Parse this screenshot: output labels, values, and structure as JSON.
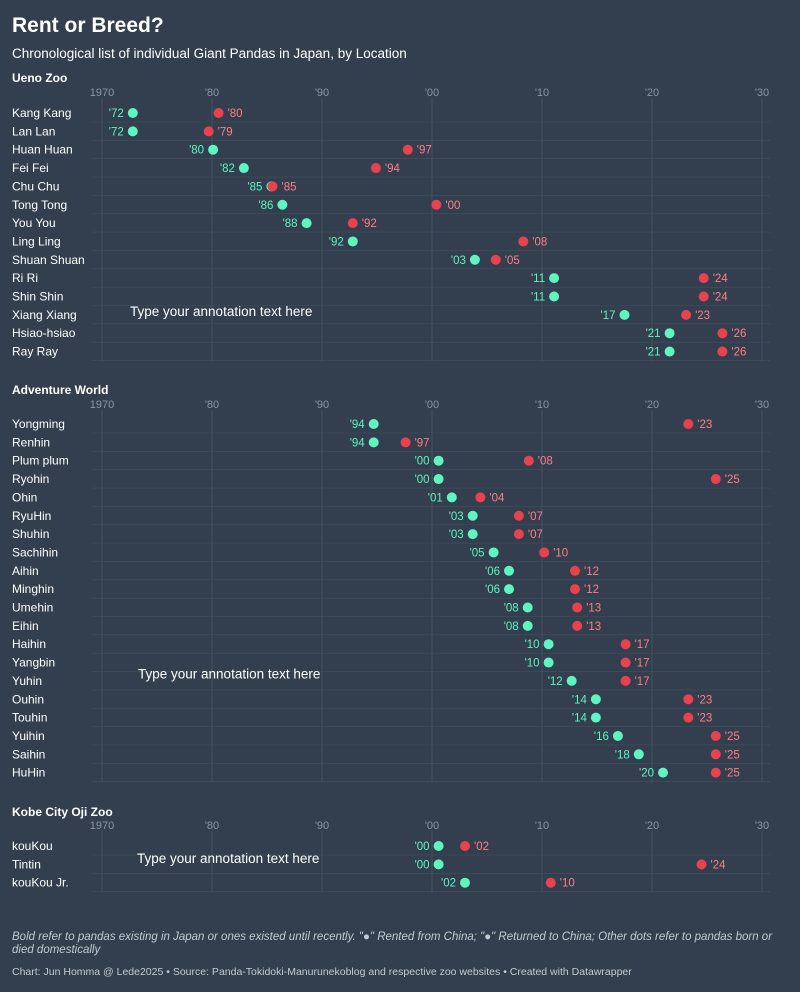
{
  "title": "Rent or Breed?",
  "subtitle": "Chronological list of individual Giant Pandas in Japan, by Location",
  "notes": "Bold refer to pandas existing in Japan or ones existed until recently. \"●\" Rented from China; \"●\" Returned to China; Other dots refer to pandas born or died domestically",
  "footer": "Chart: Jun Homma @ Lede2025 • Source: Panda-Tokidoki-Manurunekoblog and respective zoo websites • Created with Datawrapper",
  "colors": {
    "background": "#333f4e",
    "start": "#5ef5c0",
    "end": "#e8424f",
    "grid": "#46505e",
    "tick": "#8a95a3",
    "startLabel": "#5ef5c0",
    "endLabel": "#ff7e86"
  },
  "chart_data": [
    {
      "type": "range",
      "title": "Ueno Zoo",
      "annotation": "Type your annotation text here",
      "x_ticks": [
        1970,
        1980,
        1990,
        2000,
        2010,
        2020,
        2030
      ],
      "x_tick_labels": [
        "1970",
        "'80",
        "'90",
        "'00",
        "'10",
        "'20",
        "'30"
      ],
      "xlim": [
        1970,
        2030
      ],
      "rows": [
        {
          "name": "Kang Kang",
          "start": 1972.8,
          "end": 1980.6,
          "start_label": "'72",
          "end_label": "'80"
        },
        {
          "name": "Lan Lan",
          "start": 1972.8,
          "end": 1979.7,
          "start_label": "'72",
          "end_label": "'79"
        },
        {
          "name": "Huan Huan",
          "start": 1980.1,
          "end": 1997.8,
          "start_label": "'80",
          "end_label": "'97"
        },
        {
          "name": "Fei Fei",
          "start": 1982.9,
          "end": 1994.9,
          "start_label": "'82",
          "end_label": "'94"
        },
        {
          "name": "Chu Chu",
          "start": 1985.4,
          "end": 1985.5,
          "start_label": "'85",
          "end_label": "'85"
        },
        {
          "name": "Tong Tong",
          "start": 1986.4,
          "end": 2000.4,
          "start_label": "'86",
          "end_label": "'00"
        },
        {
          "name": "You You",
          "start": 1988.6,
          "end": 1992.8,
          "start_label": "'88",
          "end_label": "'92"
        },
        {
          "name": "Ling Ling",
          "start": 1992.8,
          "end": 2008.3,
          "start_label": "'92",
          "end_label": "'08"
        },
        {
          "name": "Shuan Shuan",
          "start": 2003.9,
          "end": 2005.8,
          "start_label": "'03",
          "end_label": "'05"
        },
        {
          "name": "Ri Ri",
          "start": 2011.1,
          "end": 2024.7,
          "start_label": "'11",
          "end_label": "'24"
        },
        {
          "name": "Shin Shin",
          "start": 2011.1,
          "end": 2024.7,
          "start_label": "'11",
          "end_label": "'24"
        },
        {
          "name": "Xiang Xiang",
          "start": 2017.5,
          "end": 2023.1,
          "start_label": "'17",
          "end_label": "'23"
        },
        {
          "name": "Hsiao-hsiao",
          "start": 2021.6,
          "end": 2026.4,
          "start_label": "'21",
          "end_label": "'26"
        },
        {
          "name": "Ray Ray",
          "start": 2021.6,
          "end": 2026.4,
          "start_label": "'21",
          "end_label": "'26"
        }
      ]
    },
    {
      "type": "range",
      "title": "Adventure World",
      "annotation": "Type your annotation text here",
      "x_ticks": [
        1970,
        1980,
        1990,
        2000,
        2010,
        2020,
        2030
      ],
      "x_tick_labels": [
        "1970",
        "'80",
        "'90",
        "'00",
        "'10",
        "'20",
        "'30"
      ],
      "xlim": [
        1970,
        2030
      ],
      "rows": [
        {
          "name": "Yongming",
          "start": 1994.7,
          "end": 2023.3,
          "start_label": "'94",
          "end_label": "'23"
        },
        {
          "name": "Renhin",
          "start": 1994.7,
          "end": 1997.6,
          "start_label": "'94",
          "end_label": "'97"
        },
        {
          "name": "Plum plum",
          "start": 2000.6,
          "end": 2008.8,
          "start_label": "'00",
          "end_label": "'08"
        },
        {
          "name": "Ryohin",
          "start": 2000.6,
          "end": 2025.8,
          "start_label": "'00",
          "end_label": "'25"
        },
        {
          "name": "Ohin",
          "start": 2001.8,
          "end": 2004.4,
          "start_label": "'01",
          "end_label": "'04"
        },
        {
          "name": "RyuHin",
          "start": 2003.7,
          "end": 2007.9,
          "start_label": "'03",
          "end_label": "'07"
        },
        {
          "name": "Shuhin",
          "start": 2003.7,
          "end": 2007.9,
          "start_label": "'03",
          "end_label": "'07"
        },
        {
          "name": "Sachihin",
          "start": 2005.6,
          "end": 2010.2,
          "start_label": "'05",
          "end_label": "'10"
        },
        {
          "name": "Aihin",
          "start": 2007.0,
          "end": 2013.0,
          "start_label": "'06",
          "end_label": "'12"
        },
        {
          "name": "Minghin",
          "start": 2007.0,
          "end": 2013.0,
          "start_label": "'06",
          "end_label": "'12"
        },
        {
          "name": "Umehin",
          "start": 2008.7,
          "end": 2013.2,
          "start_label": "'08",
          "end_label": "'13"
        },
        {
          "name": "Eihin",
          "start": 2008.7,
          "end": 2013.2,
          "start_label": "'08",
          "end_label": "'13"
        },
        {
          "name": "Haihin",
          "start": 2010.6,
          "end": 2017.6,
          "start_label": "'10",
          "end_label": "'17"
        },
        {
          "name": "Yangbin",
          "start": 2010.6,
          "end": 2017.6,
          "start_label": "'10",
          "end_label": "'17"
        },
        {
          "name": "Yuhin",
          "start": 2012.7,
          "end": 2017.6,
          "start_label": "'12",
          "end_label": "'17"
        },
        {
          "name": "Ouhin",
          "start": 2014.9,
          "end": 2023.3,
          "start_label": "'14",
          "end_label": "'23"
        },
        {
          "name": "Touhin",
          "start": 2014.9,
          "end": 2023.3,
          "start_label": "'14",
          "end_label": "'23"
        },
        {
          "name": "Yuihin",
          "start": 2016.9,
          "end": 2025.8,
          "start_label": "'16",
          "end_label": "'25"
        },
        {
          "name": "Saihin",
          "start": 2018.8,
          "end": 2025.8,
          "start_label": "'18",
          "end_label": "'25"
        },
        {
          "name": "HuHin",
          "start": 2021.0,
          "end": 2025.8,
          "start_label": "'20",
          "end_label": "'25"
        }
      ]
    },
    {
      "type": "range",
      "title": "Kobe City Oji Zoo",
      "annotation": "Type your annotation text here",
      "x_ticks": [
        1970,
        1980,
        1990,
        2000,
        2010,
        2020,
        2030
      ],
      "x_tick_labels": [
        "1970",
        "'80",
        "'90",
        "'00",
        "'10",
        "'20",
        "'30"
      ],
      "xlim": [
        1970,
        2030
      ],
      "rows": [
        {
          "name": "kouKou",
          "start": 2000.6,
          "end": 2003.0,
          "start_label": "'00",
          "end_label": "'02"
        },
        {
          "name": "Tintin",
          "start": 2000.6,
          "end": 2024.5,
          "start_label": "'00",
          "end_label": "'24"
        },
        {
          "name": "kouKou Jr.",
          "start": 2003.0,
          "end": 2010.8,
          "start_label": "'02",
          "end_label": "'10"
        }
      ]
    }
  ]
}
